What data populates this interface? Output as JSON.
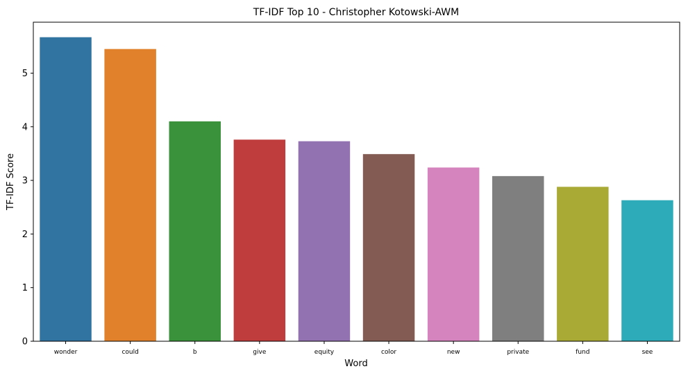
{
  "chart_data": {
    "type": "bar",
    "title": "TF-IDF Top 10 - Christopher Kotowski-AWM",
    "xlabel": "Word",
    "ylabel": "TF-IDF Score",
    "categories": [
      "wonder",
      "could",
      "b",
      "give",
      "equity",
      "color",
      "new",
      "private",
      "fund",
      "see"
    ],
    "values": [
      5.67,
      5.45,
      4.1,
      3.76,
      3.73,
      3.49,
      3.24,
      3.08,
      2.88,
      2.63
    ],
    "colors": [
      "#3274a1",
      "#e1812c",
      "#3a923a",
      "#c03d3e",
      "#9372b2",
      "#845b53",
      "#d684bd",
      "#7f7f7f",
      "#a9aa35",
      "#2eabb8"
    ],
    "ylim": [
      0,
      5.95
    ],
    "yticks": [
      0,
      1,
      2,
      3,
      4,
      5
    ],
    "grid": false,
    "legend": "none"
  }
}
